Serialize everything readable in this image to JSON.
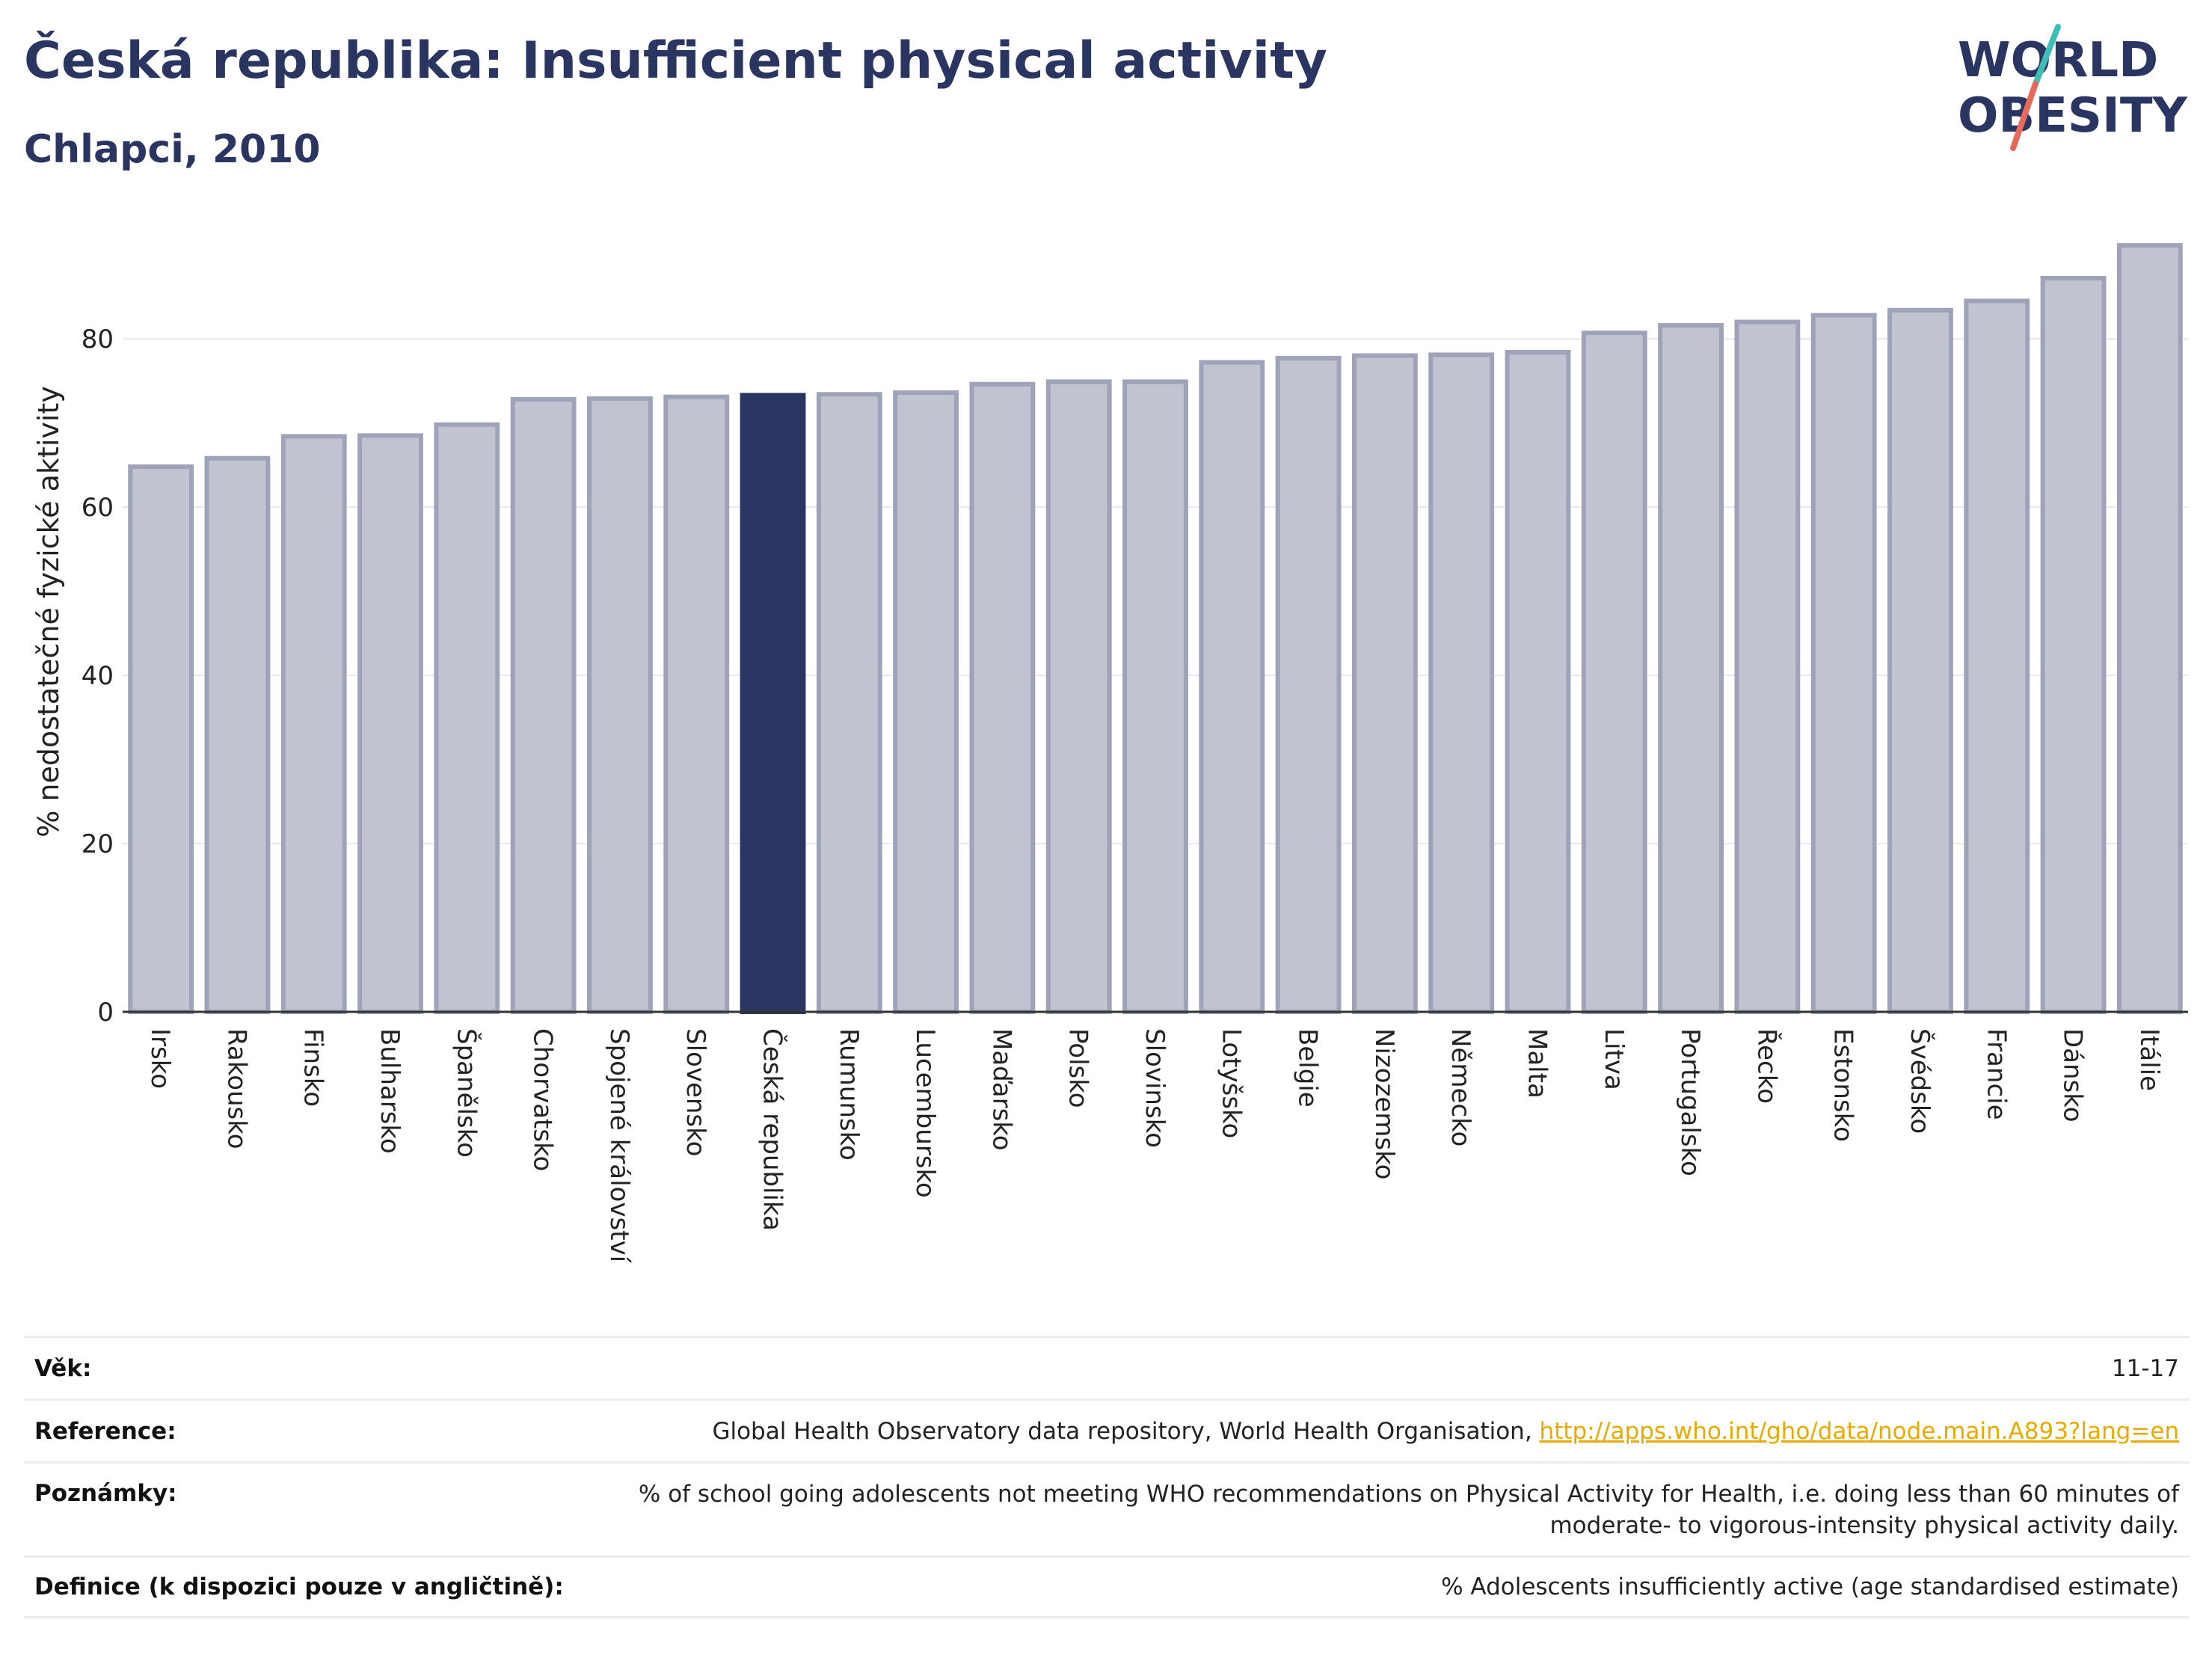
{
  "header": {
    "title": "Česká republika: Insufficient physical activity",
    "subtitle": "Chlapci, 2010"
  },
  "logo": {
    "line1": "WORLD",
    "line2": "OBESITY",
    "text_color": "#2b3561",
    "slash_colors": [
      "#3dbfb8",
      "#e8695a"
    ]
  },
  "chart_data": {
    "type": "bar",
    "title": "Česká republika: Insufficient physical activity",
    "subtitle": "Chlapci, 2010",
    "xlabel": "",
    "ylabel": "% nedostatečné fyzické aktivity",
    "ylim": [
      0,
      92
    ],
    "yticks": [
      0,
      20,
      40,
      60,
      80
    ],
    "grid": true,
    "highlight": "Česká republika",
    "colors": {
      "bar": "#c0c3d0",
      "bar_border": "#9ea3ba",
      "highlight": "#2b3561"
    },
    "categories": [
      "Irsko",
      "Rakousko",
      "Finsko",
      "Bulharsko",
      "Španělsko",
      "Chorvatsko",
      "Spojené království",
      "Slovensko",
      "Česká republika",
      "Rumunsko",
      "Lucembursko",
      "Maďarsko",
      "Polsko",
      "Slovinsko",
      "Lotyšsko",
      "Belgie",
      "Nizozemsko",
      "Německo",
      "Malta",
      "Litva",
      "Portugalsko",
      "Řecko",
      "Estonsko",
      "Švédsko",
      "Francie",
      "Dánsko",
      "Itálie"
    ],
    "values": [
      64.8,
      65.8,
      68.4,
      68.5,
      69.8,
      72.8,
      72.9,
      73.1,
      73.3,
      73.4,
      73.6,
      74.6,
      74.9,
      74.9,
      77.2,
      77.7,
      78.0,
      78.1,
      78.4,
      80.7,
      81.6,
      82.0,
      82.8,
      83.4,
      84.5,
      87.2,
      91.1
    ]
  },
  "meta": {
    "vek_label": "Věk:",
    "vek_value": "11-17",
    "reference_label": "Reference:",
    "reference_text": "Global Health Observatory data repository, World Health Organisation, ",
    "reference_link": "http://apps.who.int/gho/data/node.main.A893?lang=en",
    "poznamky_label": "Poznámky:",
    "poznamky_value": "% of school going adolescents not meeting WHO recommendations on Physical Activity for Health, i.e. doing less than 60 minutes of moderate- to vigorous-intensity physical activity daily.",
    "definice_label": "Definice (k dispozici pouze v angličtině):",
    "definice_value": "% Adolescents insufficiently active (age standardised estimate)"
  }
}
